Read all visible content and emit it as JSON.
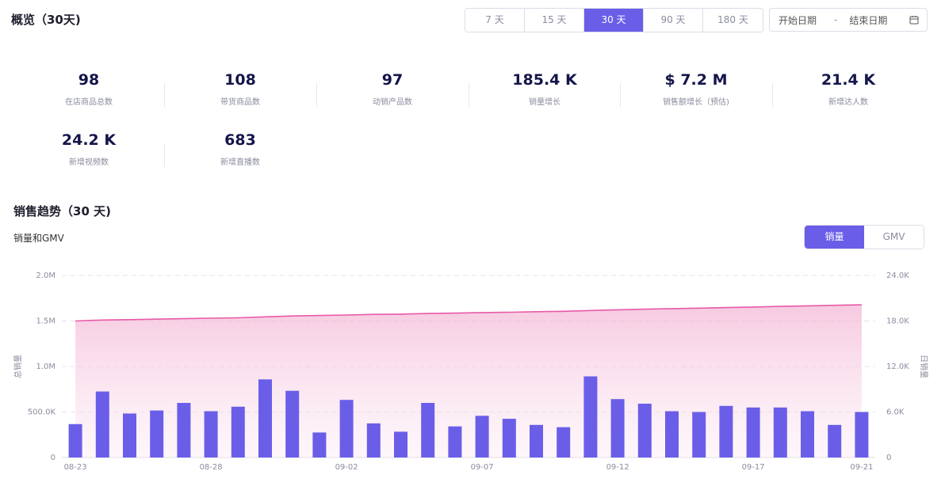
{
  "overview": {
    "title": "概览（30天)",
    "ranges": [
      "7 天",
      "15 天",
      "30 天",
      "90 天",
      "180 天"
    ],
    "active_range": "30 天",
    "date_start_placeholder": "开始日期",
    "date_sep": "-",
    "date_end_placeholder": "结束日期"
  },
  "metrics": [
    {
      "value": "98",
      "label": "在店商品总数"
    },
    {
      "value": "108",
      "label": "带货商品数"
    },
    {
      "value": "97",
      "label": "动销产品数"
    },
    {
      "value": "185.4 K",
      "label": "销量增长"
    },
    {
      "value": "$ 7.2 M",
      "label": "销售额增长（预估)"
    },
    {
      "value": "21.4 K",
      "label": "新增达人数"
    },
    {
      "value": "24.2 K",
      "label": "新增视频数"
    },
    {
      "value": "683",
      "label": "新增直播数"
    }
  ],
  "trend": {
    "title": "销售趋势（30 天)",
    "subtitle": "销量和GMV",
    "toggle": [
      "销量",
      "GMV"
    ],
    "active_toggle": "销量"
  },
  "chart_data": {
    "type": "bar+area",
    "categories": [
      "08-23",
      "08-24",
      "08-25",
      "08-26",
      "08-27",
      "08-28",
      "08-29",
      "08-30",
      "08-31",
      "09-01",
      "09-02",
      "09-03",
      "09-04",
      "09-05",
      "09-06",
      "09-07",
      "09-08",
      "09-09",
      "09-10",
      "09-11",
      "09-12",
      "09-13",
      "09-14",
      "09-15",
      "09-16",
      "09-17",
      "09-18",
      "09-19",
      "09-20",
      "09-21"
    ],
    "xtick_labels": [
      "08-23",
      "08-28",
      "09-02",
      "09-07",
      "09-12",
      "09-17",
      "09-21"
    ],
    "series": [
      {
        "name": "日销量",
        "axis": "right",
        "type": "bar",
        "values": [
          4400,
          8700,
          5800,
          6200,
          7200,
          6100,
          6700,
          10300,
          8800,
          3300,
          7600,
          4500,
          3400,
          7200,
          4100,
          5500,
          5100,
          4300,
          4000,
          10700,
          7700,
          7100,
          6100,
          6000,
          6800,
          6600,
          6600,
          6100,
          4300,
          6000
        ]
      },
      {
        "name": "总销量",
        "axis": "left",
        "type": "area",
        "values": [
          1500000,
          1510000,
          1515000,
          1520000,
          1525000,
          1530000,
          1535000,
          1545000,
          1555000,
          1560000,
          1565000,
          1572000,
          1575000,
          1582000,
          1586000,
          1592000,
          1596000,
          1602000,
          1606000,
          1615000,
          1623000,
          1630000,
          1636000,
          1641000,
          1647000,
          1653000,
          1660000,
          1666000,
          1672000,
          1677000
        ]
      }
    ],
    "ylabel_left": "总销量",
    "ylabel_right": "日销量",
    "ylim_left": [
      0,
      2000000
    ],
    "ylim_right": [
      0,
      24000
    ],
    "yticks_left": [
      "0",
      "500.0K",
      "1.0M",
      "1.5M",
      "2.0M"
    ],
    "yticks_right": [
      "0",
      "6.0K",
      "12.0K",
      "18.0K",
      "24.0K"
    ],
    "bar_color": "#6a5ee8",
    "line_color": "#e85aa8",
    "area_color": "#f7c6df"
  }
}
